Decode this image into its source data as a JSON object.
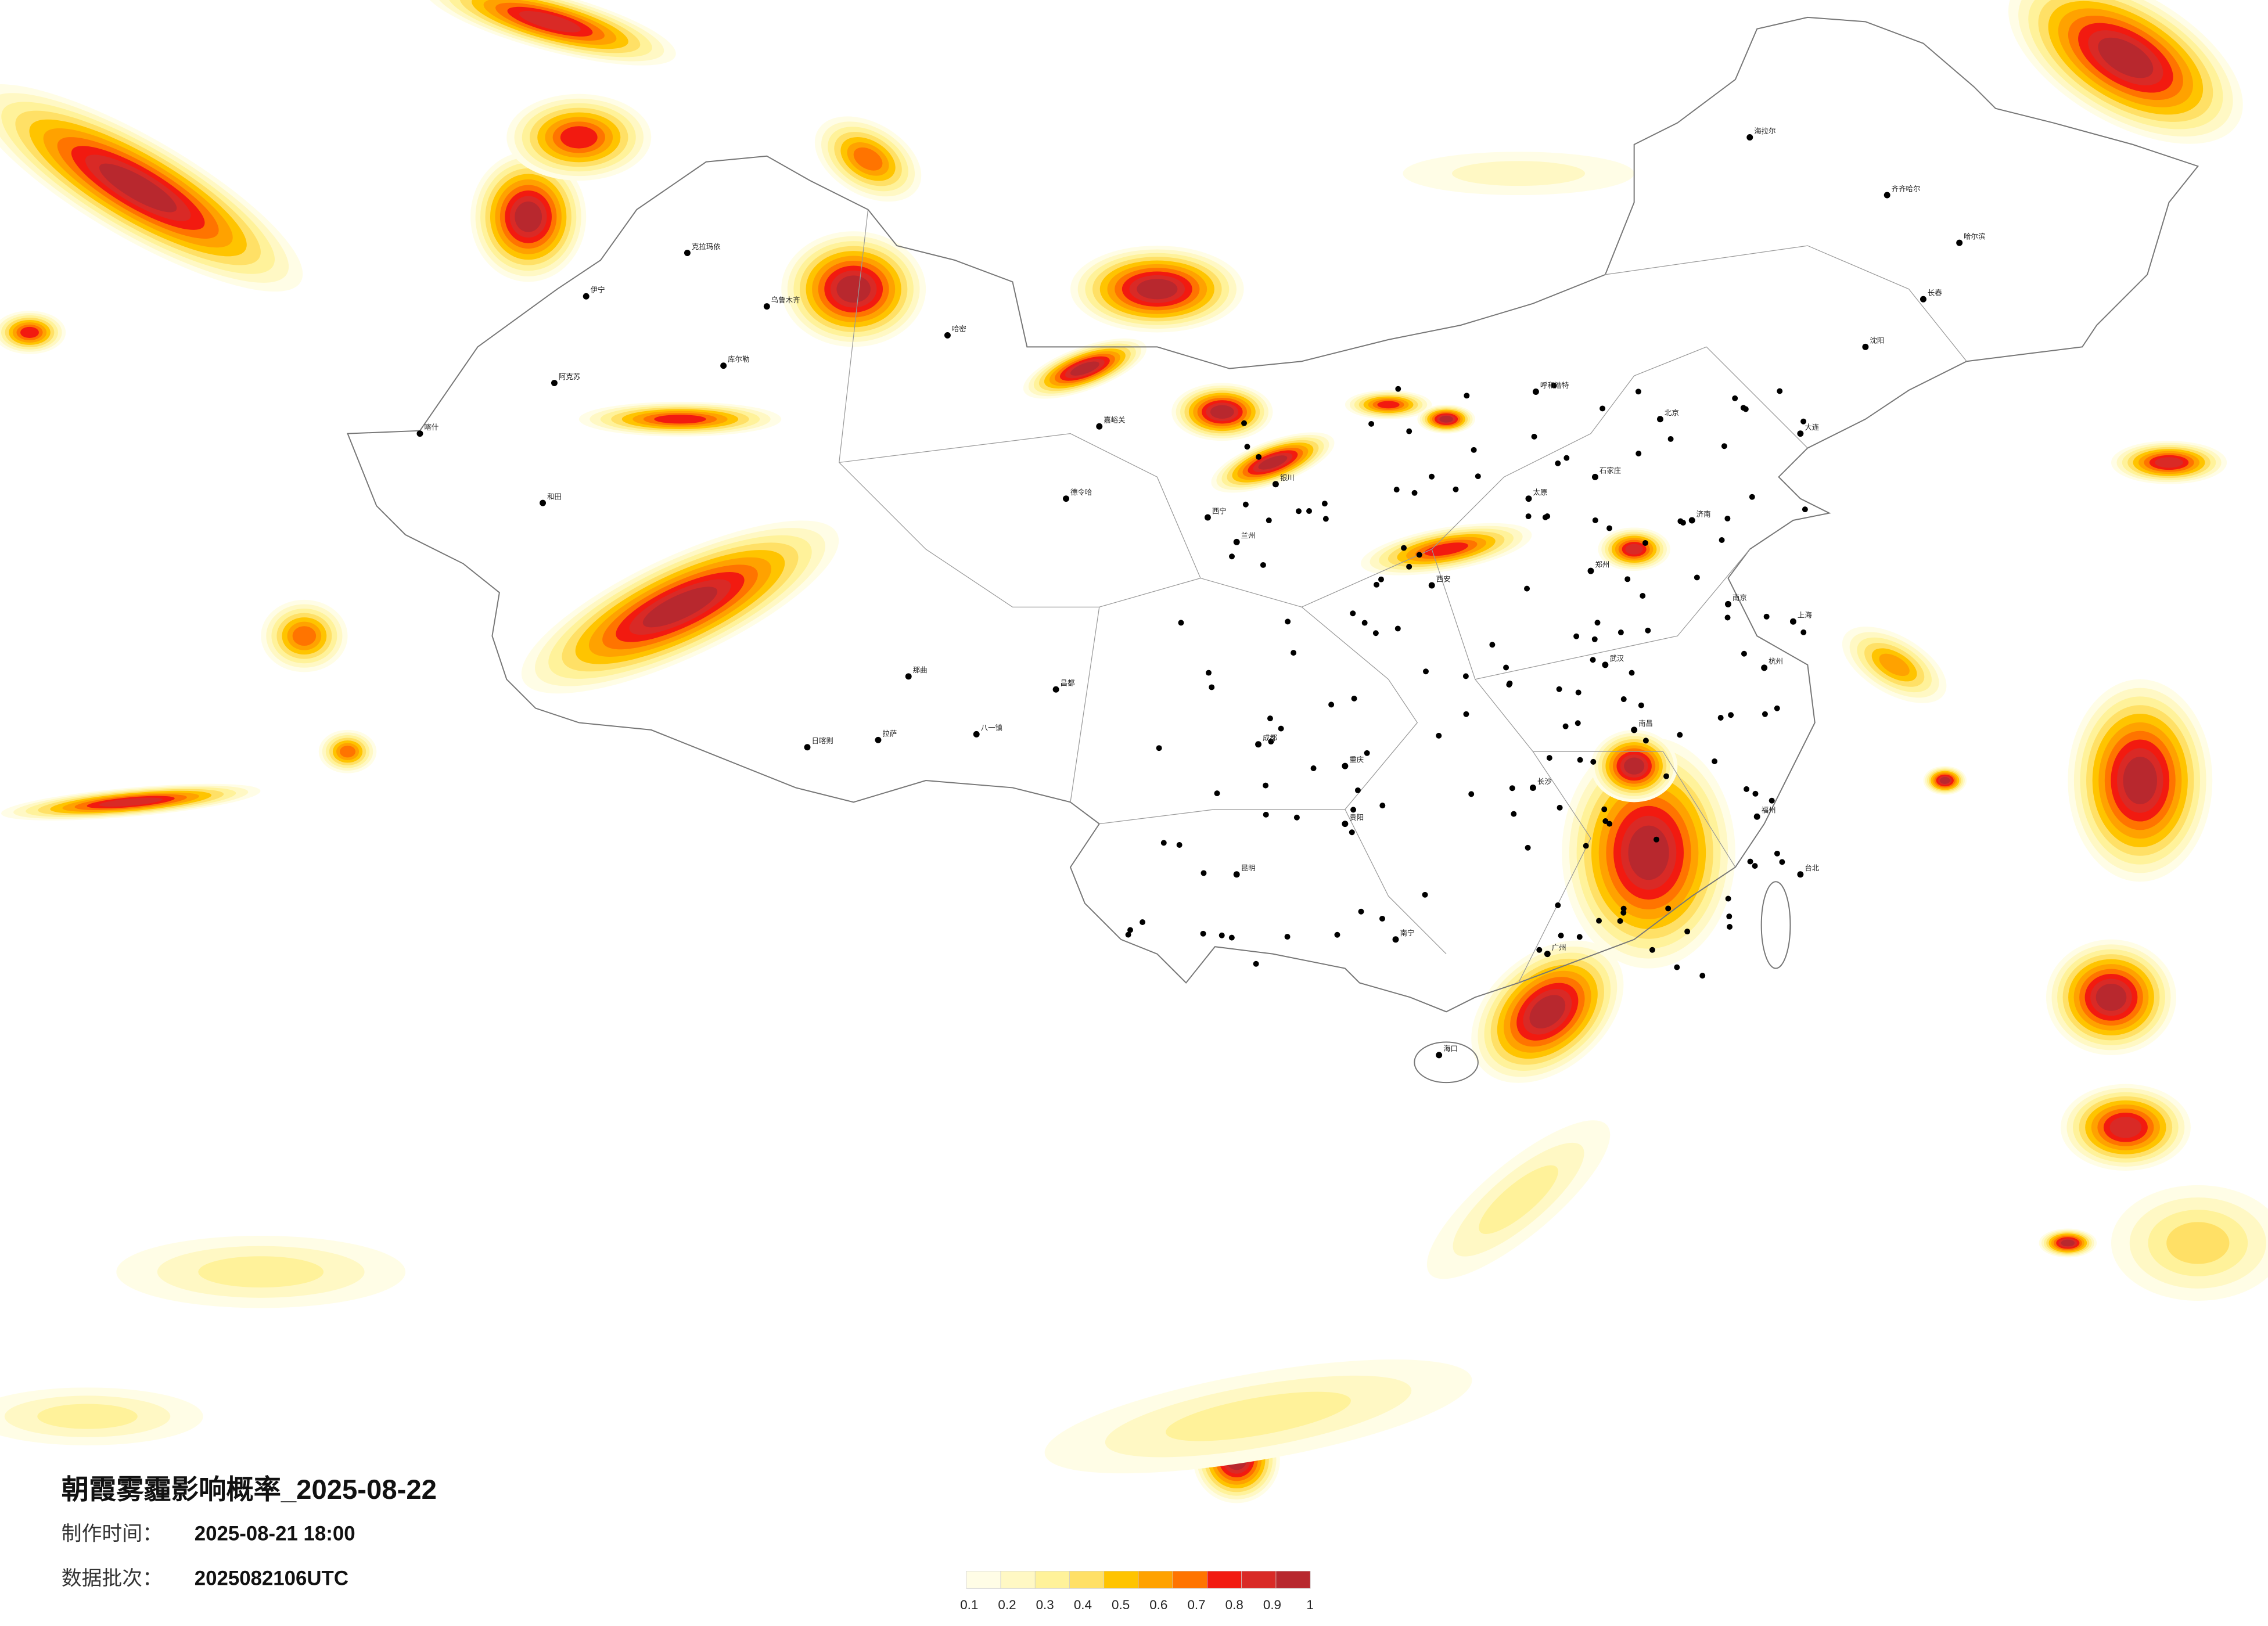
{
  "title": "朝霞雾霾影响概率_2025-08-22",
  "made_label": "制作时间：",
  "made_time": "2025-08-21 18:00",
  "batch_label": "数据批次：",
  "batch": "2025082106UTC",
  "legend": {
    "colors": [
      "#fffde6",
      "#fff8c4",
      "#fff29a",
      "#ffe066",
      "#ffc400",
      "#ffa200",
      "#ff7400",
      "#f21a10",
      "#d92a26",
      "#b8282e"
    ],
    "ticks": [
      0.1,
      0.2,
      0.3,
      0.4,
      0.5,
      0.6,
      0.7,
      0.8,
      0.9,
      1
    ]
  },
  "cities": [
    "克拉玛依",
    "乌鲁木齐",
    "库尔勒",
    "哈密",
    "阿克苏",
    "伊宁",
    "和田",
    "喀什",
    "德令哈",
    "拉萨",
    "日喀则",
    "八一镇",
    "那曲",
    "昌都",
    "嘉峪关",
    "西宁",
    "兰州",
    "银川",
    "呼和浩特",
    "海拉尔",
    "齐齐哈尔",
    "哈尔滨",
    "长春",
    "沈阳",
    "大连",
    "北京",
    "石家庄",
    "太原",
    "济南",
    "郑州",
    "西安",
    "成都",
    "重庆",
    "武汉",
    "南京",
    "上海",
    "杭州",
    "长沙",
    "贵阳",
    "昆明",
    "南宁",
    "广州",
    "福州",
    "南昌",
    "台北",
    "海口"
  ]
}
